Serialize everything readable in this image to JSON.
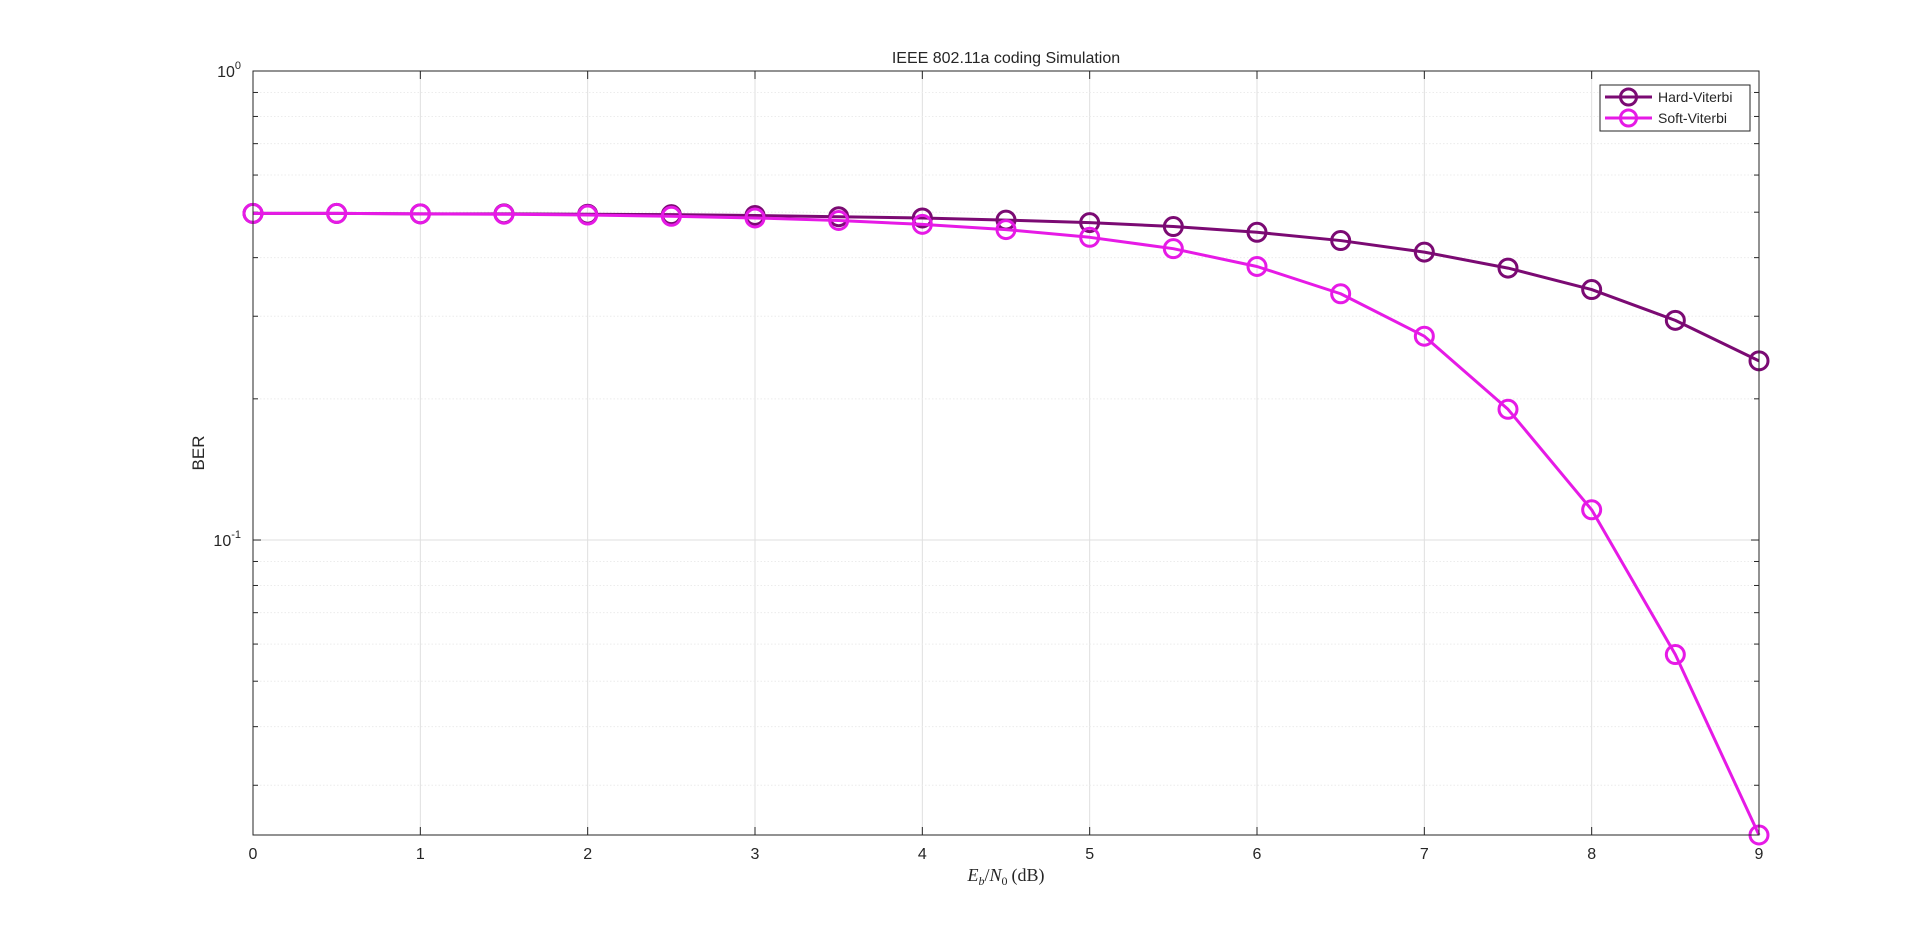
{
  "figure": {
    "background": "#ffffff"
  },
  "chart_data": {
    "type": "line",
    "title": "IEEE 802.11a coding Simulation",
    "xlabel": "E_b/N_0 (dB)",
    "xlabel_parts": {
      "e": "E",
      "b": "b",
      "slash": "/",
      "n": "N",
      "zero": "0",
      "unit": "(dB)"
    },
    "ylabel": "BER",
    "xlim": [
      0,
      9
    ],
    "ylim": [
      0.0235,
      1
    ],
    "yscale": "log",
    "grid": true,
    "legend_location": "top-right",
    "x_ticks": [
      0,
      1,
      2,
      3,
      4,
      5,
      6,
      7,
      8,
      9
    ],
    "x_tick_labels": [
      "0",
      "1",
      "2",
      "3",
      "4",
      "5",
      "6",
      "7",
      "8",
      "9"
    ],
    "y_major_ticks": [
      {
        "value": 0.1,
        "base": "10",
        "exp": "-1"
      },
      {
        "value": 1,
        "base": "10",
        "exp": "0"
      }
    ],
    "x": [
      0,
      0.5,
      1,
      1.5,
      2,
      2.5,
      3,
      3.5,
      4,
      4.5,
      5,
      5.5,
      6,
      6.5,
      7,
      7.5,
      8,
      8.5,
      9
    ],
    "series": [
      {
        "name": "Hard-Viterbi",
        "color": "#7b0a73",
        "marker": "circle",
        "values": [
          0.497,
          0.497,
          0.496,
          0.496,
          0.495,
          0.494,
          0.492,
          0.489,
          0.486,
          0.481,
          0.475,
          0.466,
          0.453,
          0.435,
          0.411,
          0.38,
          0.342,
          0.294,
          0.241
        ]
      },
      {
        "name": "Soft-Viterbi",
        "color": "#e61ae6",
        "marker": "circle",
        "values": [
          0.497,
          0.497,
          0.496,
          0.495,
          0.493,
          0.49,
          0.486,
          0.48,
          0.471,
          0.459,
          0.442,
          0.418,
          0.383,
          0.335,
          0.272,
          0.19,
          0.116,
          0.057,
          0.0235
        ]
      }
    ]
  }
}
